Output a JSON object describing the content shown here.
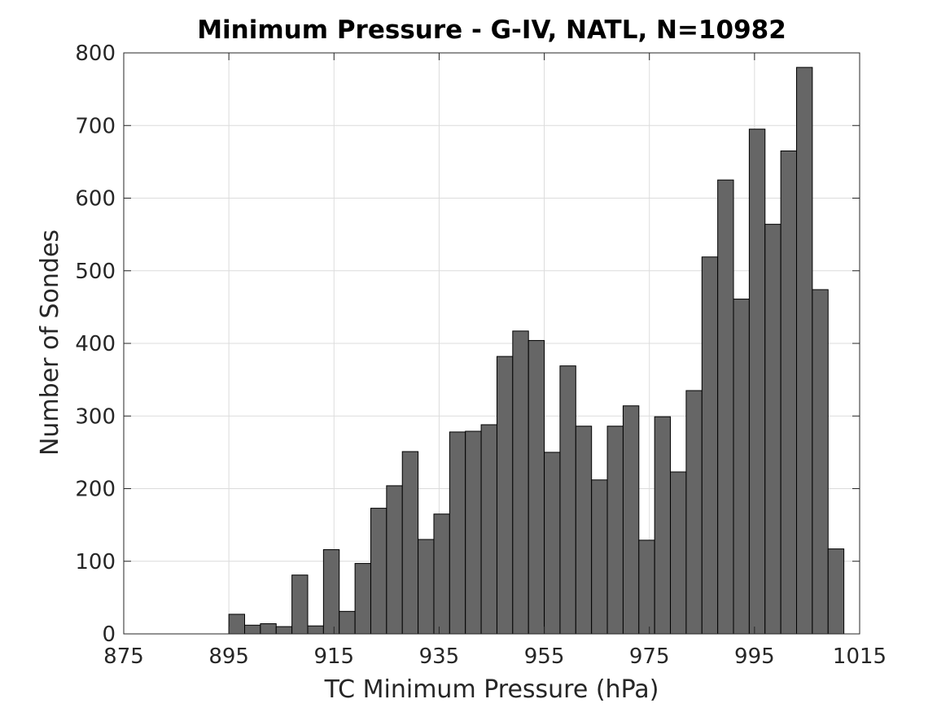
{
  "chart_data": {
    "type": "bar",
    "title": "Minimum Pressure - G-IV, NATL, N=10982",
    "xlabel": "TC Minimum Pressure (hPa)",
    "ylabel": "Number of Sondes",
    "xlim": [
      875,
      1015
    ],
    "ylim": [
      0,
      800
    ],
    "xticks": [
      "875",
      "895",
      "915",
      "935",
      "955",
      "975",
      "995",
      "1015"
    ],
    "yticks": [
      "0",
      "100",
      "200",
      "300",
      "400",
      "500",
      "600",
      "700",
      "800"
    ],
    "bin_width": 3,
    "bin_start": 895,
    "values": [
      27,
      12,
      14,
      10,
      81,
      11,
      116,
      31,
      97,
      173,
      204,
      251,
      130,
      165,
      278,
      279,
      288,
      382,
      417,
      404,
      250,
      369,
      286,
      212,
      286,
      314,
      129,
      299,
      223,
      335,
      519,
      625,
      461,
      695,
      564,
      665,
      780,
      474,
      117
    ],
    "bar_color": "#666666",
    "grid": true
  }
}
